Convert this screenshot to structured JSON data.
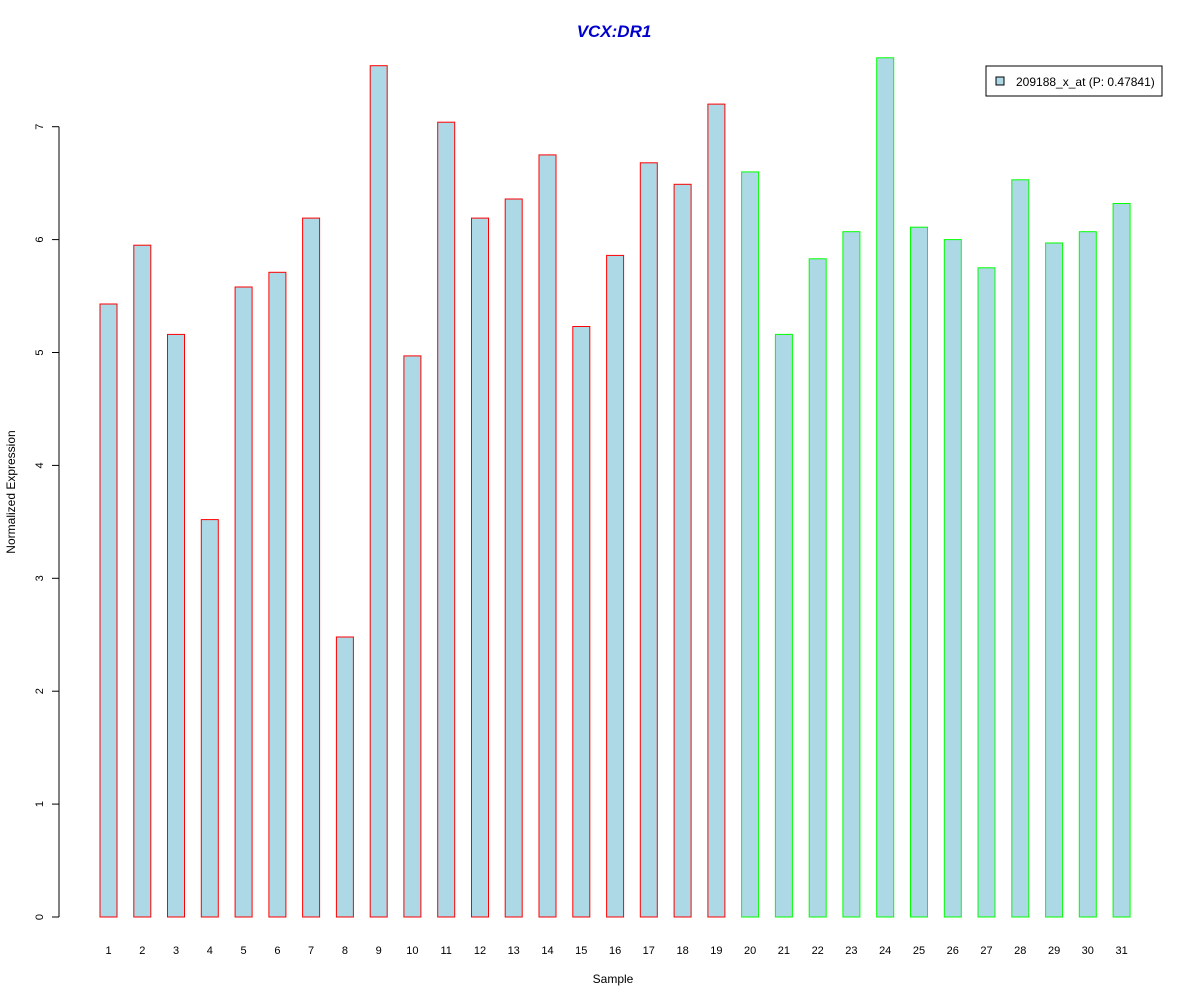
{
  "chart_data": {
    "type": "bar",
    "title": "VCX:DR1",
    "xlabel": "Sample",
    "ylabel": "Normalized Expression",
    "categories": [
      "1",
      "2",
      "3",
      "4",
      "5",
      "6",
      "7",
      "8",
      "9",
      "10",
      "11",
      "12",
      "13",
      "14",
      "15",
      "16",
      "17",
      "18",
      "19",
      "20",
      "21",
      "22",
      "23",
      "24",
      "25",
      "26",
      "27",
      "28",
      "29",
      "30",
      "31"
    ],
    "series": [
      {
        "name": "209188_x_at (P: 0.47841)",
        "values": [
          5.43,
          5.95,
          5.16,
          3.52,
          5.58,
          5.71,
          6.19,
          2.48,
          7.54,
          4.97,
          7.04,
          6.19,
          6.36,
          6.75,
          5.23,
          5.86,
          6.68,
          6.49,
          7.2,
          6.6,
          5.16,
          5.83,
          6.07,
          7.61,
          6.11,
          6.0,
          5.75,
          6.53,
          5.97,
          6.07,
          6.32
        ]
      }
    ],
    "groups": [
      {
        "from": 1,
        "to": 19,
        "border_color": "#ff0000"
      },
      {
        "from": 20,
        "to": 31,
        "border_color": "#00ff00"
      }
    ],
    "bar_fill": "#add8e6",
    "title_color": "#0000cd",
    "ylim": [
      0,
      7.6
    ],
    "yticks": [
      0,
      1,
      2,
      3,
      4,
      5,
      6,
      7
    ],
    "grid": false,
    "legend_position": "top-right"
  }
}
